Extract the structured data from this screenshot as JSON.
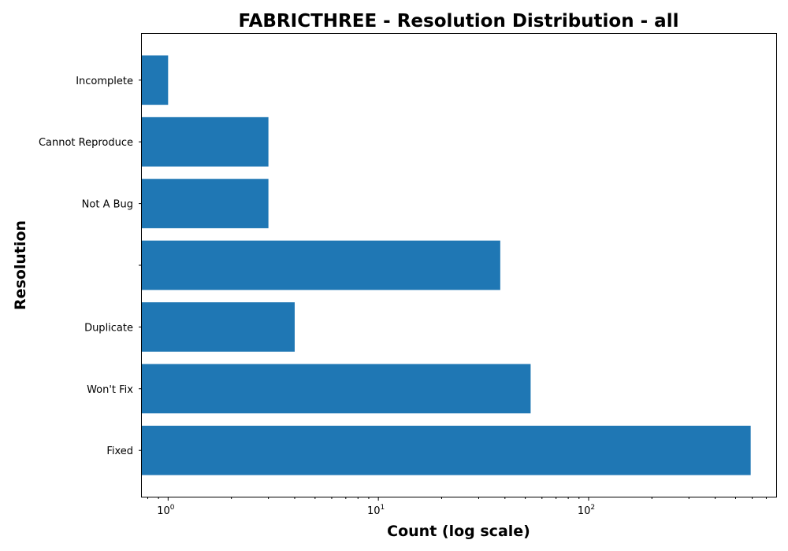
{
  "chart_data": {
    "type": "bar",
    "orientation": "horizontal",
    "title": "FABRICTHREE - Resolution Distribution - all",
    "xlabel": "Count (log scale)",
    "ylabel": "Resolution",
    "x_scale": "log",
    "xlim": [
      0.75,
      780
    ],
    "x_ticks": [
      {
        "value": 1,
        "base": "10",
        "exp": "0"
      },
      {
        "value": 10,
        "base": "10",
        "exp": "1"
      },
      {
        "value": 100,
        "base": "10",
        "exp": "2"
      }
    ],
    "categories": [
      "Fixed",
      "Won't Fix",
      "Duplicate",
      "",
      "Not A Bug",
      "Cannot Reproduce",
      "Incomplete"
    ],
    "values": [
      590,
      53,
      4,
      38,
      3,
      3,
      1
    ],
    "color": "#1f77b4",
    "grid": false,
    "legend": "none"
  }
}
